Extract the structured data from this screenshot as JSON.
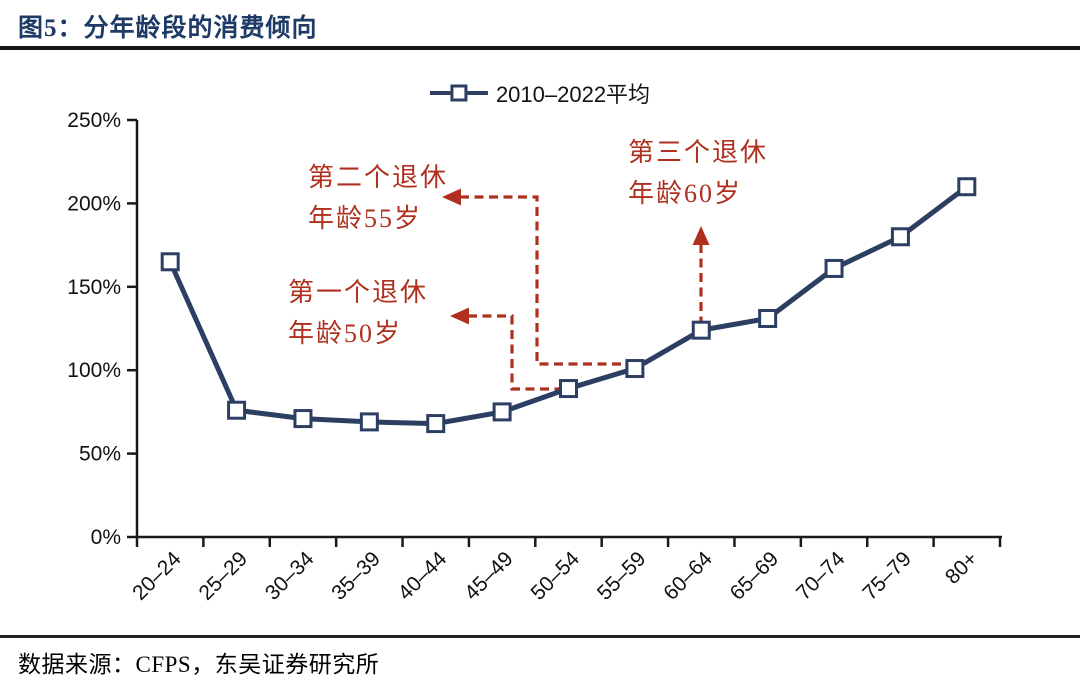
{
  "page": {
    "title": "图5：分年龄段的消费倾向",
    "source_note": "数据来源：CFPS，东吴证券研究所"
  },
  "colors": {
    "title_navy": "#1e3a66",
    "series_navy": "#2d3e63",
    "annotation_red": "#b0301f",
    "axis_black": "#1a1a1a",
    "marker_fill": "#ffffff"
  },
  "chart_data": {
    "type": "line",
    "title": "图5：分年龄段的消费倾向",
    "legend_position": "top-center",
    "legend": [
      {
        "name": "2010–2022平均",
        "marker": "open-square",
        "color": "#2d3e63"
      }
    ],
    "categories": [
      "20–24",
      "25–29",
      "30–34",
      "35–39",
      "40–44",
      "45–49",
      "50–54",
      "55–59",
      "60–64",
      "65–69",
      "70–74",
      "75–79",
      "80+"
    ],
    "series": [
      {
        "name": "2010–2022平均",
        "values": [
          165,
          76,
          71,
          69,
          68,
          75,
          89,
          101,
          124,
          131,
          161,
          180,
          210
        ]
      }
    ],
    "xlabel": "",
    "ylabel": "",
    "y_unit": "%",
    "ylim": [
      0,
      250
    ],
    "y_tick_step": 50,
    "y_tick_labels": [
      "0%",
      "50%",
      "100%",
      "150%",
      "200%",
      "250%"
    ],
    "grid": false,
    "annotations": [
      {
        "lines": [
          "第一个退休",
          "年龄50岁"
        ],
        "target_category": "50–54",
        "arrow": "elbow-left"
      },
      {
        "lines": [
          "第二个退休",
          "年龄55岁"
        ],
        "target_category": "55–59",
        "arrow": "elbow-left"
      },
      {
        "lines": [
          "第三个退休",
          "年龄60岁"
        ],
        "target_category": "60–64",
        "arrow": "up"
      }
    ],
    "source_note": "数据来源：CFPS，东吴证券研究所"
  }
}
